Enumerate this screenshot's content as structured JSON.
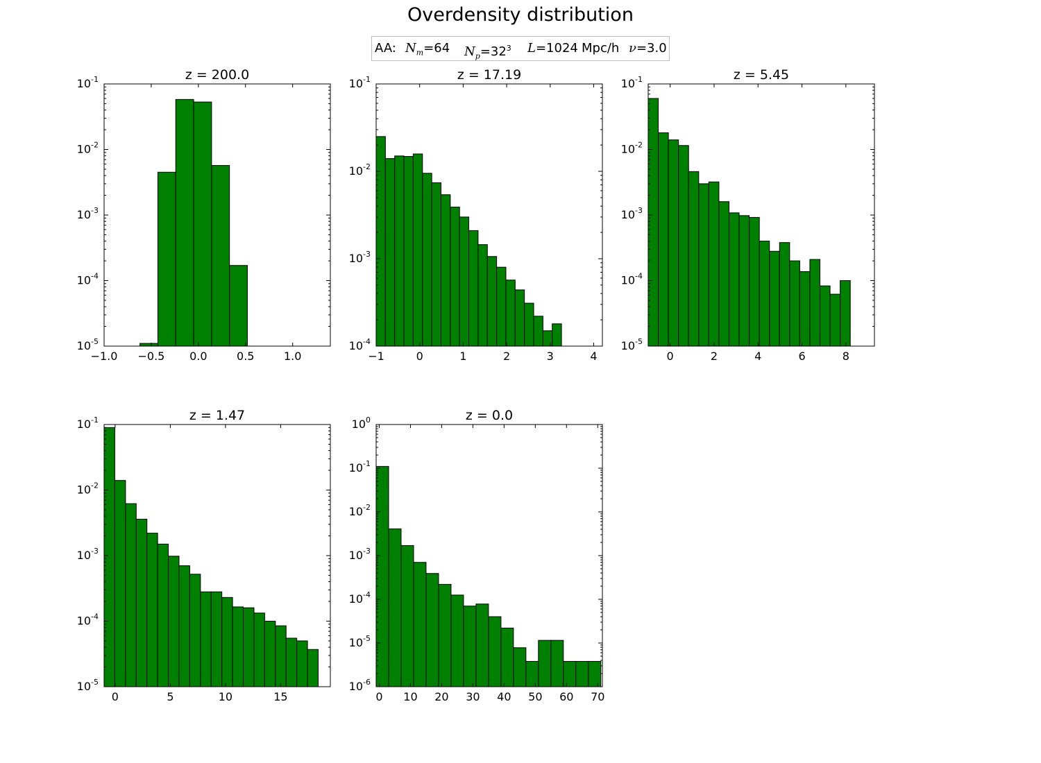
{
  "figure": {
    "title": "Overdensity distribution",
    "legend": {
      "prefix": "AA:",
      "nm_symbol": "N",
      "nm_sub": "m",
      "nm_value": "=64",
      "np_symbol": "N",
      "np_sub": "p",
      "np_value": "=32",
      "np_exp": "3",
      "l_symbol": "L",
      "l_value": "=1024",
      "l_unit": "Mpc/h",
      "nu_symbol": "ν",
      "nu_value": "=3.0"
    }
  },
  "colors": {
    "bar": "#008000",
    "edge": "#000000"
  },
  "chart_data": [
    {
      "type": "bar",
      "title": "z = 200.0",
      "yscale": "log",
      "xlim": [
        -1.0,
        1.4
      ],
      "ylim": [
        1e-05,
        0.1
      ],
      "xticks": [
        -1.0,
        -0.5,
        0.0,
        0.5,
        1.0
      ],
      "xtick_labels": [
        "−1.0",
        "−0.5",
        "0.0",
        "0.5",
        "1.0"
      ],
      "yticks": [
        -5,
        -4,
        -3,
        -2,
        -1
      ],
      "bin_edges": [
        -0.62,
        -0.43,
        -0.24,
        -0.05,
        0.14,
        0.33,
        0.52
      ],
      "values": [
        1.1e-05,
        0.0045,
        0.058,
        0.053,
        0.0057,
        0.00017
      ]
    },
    {
      "type": "bar",
      "title": "z = 17.19",
      "yscale": "log",
      "xlim": [
        -1,
        4.2
      ],
      "ylim": [
        0.0001,
        0.1
      ],
      "xticks": [
        -1,
        0,
        1,
        2,
        3,
        4
      ],
      "xtick_labels": [
        "−1",
        "0",
        "1",
        "2",
        "3",
        "4"
      ],
      "yticks": [
        -4,
        -3,
        -2,
        -1
      ],
      "bin_edges": [
        -1.0,
        -0.787,
        -0.574,
        -0.361,
        -0.148,
        0.065,
        0.278,
        0.491,
        0.704,
        0.917,
        1.13,
        1.343,
        1.556,
        1.769,
        1.982,
        2.195,
        2.408,
        2.621,
        2.834,
        3.047,
        3.26
      ],
      "values": [
        0.025,
        0.014,
        0.015,
        0.0148,
        0.0158,
        0.0095,
        0.0074,
        0.0054,
        0.0039,
        0.003,
        0.0021,
        0.00145,
        0.00106,
        0.0008,
        0.00057,
        0.00044,
        0.00031,
        0.00022,
        0.00015,
        0.00018
      ]
    },
    {
      "type": "bar",
      "title": "z = 5.45",
      "yscale": "log",
      "xlim": [
        -1,
        9.3
      ],
      "ylim": [
        1e-05,
        0.1
      ],
      "xticks": [
        0,
        2,
        4,
        6,
        8
      ],
      "xtick_labels": [
        "0",
        "2",
        "4",
        "6",
        "8"
      ],
      "yticks": [
        -5,
        -4,
        -3,
        -2,
        -1
      ],
      "bin_edges": [
        -1.0,
        -0.54,
        -0.08,
        0.38,
        0.84,
        1.3,
        1.76,
        2.22,
        2.68,
        3.14,
        3.6,
        4.06,
        4.52,
        4.98,
        5.44,
        5.9,
        6.36,
        6.82,
        7.28,
        7.74,
        8.2
      ],
      "values": [
        0.06,
        0.018,
        0.014,
        0.0115,
        0.0046,
        0.003,
        0.0032,
        0.0016,
        0.00108,
        0.00098,
        0.00092,
        0.0004,
        0.00028,
        0.00038,
        0.0002,
        0.000137,
        0.00021,
        8.3e-05,
        6.2e-05,
        0.0001
      ]
    },
    {
      "type": "bar",
      "title": "z = 1.47",
      "yscale": "log",
      "xlim": [
        -1,
        19.5
      ],
      "ylim": [
        1e-05,
        0.1
      ],
      "xticks": [
        0,
        5,
        10,
        15
      ],
      "xtick_labels": [
        "0",
        "5",
        "10",
        "15"
      ],
      "yticks": [
        -5,
        -4,
        -3,
        -2,
        -1
      ],
      "bin_edges": [
        -1.0,
        -0.03,
        0.94,
        1.91,
        2.88,
        3.85,
        4.82,
        5.79,
        6.76,
        7.73,
        8.7,
        9.67,
        10.64,
        11.61,
        12.58,
        13.55,
        14.52,
        15.49,
        16.46,
        17.43,
        18.4
      ],
      "values": [
        0.09,
        0.014,
        0.0062,
        0.0036,
        0.0022,
        0.0015,
        0.00098,
        0.0007,
        0.00052,
        0.00028,
        0.00028,
        0.00023,
        0.000165,
        0.00016,
        0.000133,
        0.0001,
        8.5e-05,
        5.5e-05,
        5e-05,
        3.7e-05
      ]
    },
    {
      "type": "bar",
      "title": "z = 0.0",
      "yscale": "log",
      "xlim": [
        -1,
        71.5
      ],
      "ylim": [
        1e-06,
        1
      ],
      "xticks": [
        0,
        10,
        20,
        30,
        40,
        50,
        60,
        70
      ],
      "xtick_labels": [
        "0",
        "10",
        "20",
        "30",
        "40",
        "50",
        "60",
        "70"
      ],
      "yticks": [
        -6,
        -5,
        -4,
        -3,
        -2,
        -1,
        0
      ],
      "bin_edges": [
        -1.0,
        3.0,
        7.0,
        11.0,
        15.0,
        19.0,
        23.0,
        27.0,
        31.0,
        35.0,
        39.0,
        43.0,
        47.0,
        51.0,
        55.0,
        59.0,
        63.0,
        67.0,
        71.0
      ],
      "values": [
        0.11,
        0.0041,
        0.0017,
        0.0007,
        0.00039,
        0.00022,
        0.000125,
        7e-05,
        7.8e-05,
        4e-05,
        2.2e-05,
        7.8e-06,
        3.8e-06,
        1.15e-05,
        1.15e-05,
        3.8e-06,
        3.8e-06,
        3.8e-06
      ]
    }
  ]
}
